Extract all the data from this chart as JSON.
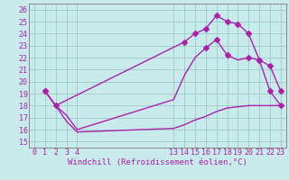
{
  "background_color": "#c8eaea",
  "grid_color": "#9ec8c8",
  "line_color": "#aa22aa",
  "xlim": [
    -0.5,
    23.5
  ],
  "ylim": [
    14.5,
    26.5
  ],
  "xticks": [
    0,
    1,
    2,
    3,
    4,
    13,
    14,
    15,
    16,
    17,
    18,
    19,
    20,
    21,
    22,
    23
  ],
  "yticks": [
    15,
    16,
    17,
    18,
    19,
    20,
    21,
    22,
    23,
    24,
    25,
    26
  ],
  "line1_x": [
    1,
    2,
    3,
    4,
    13,
    14,
    15,
    16,
    17,
    18,
    19,
    20,
    21,
    22,
    23
  ],
  "line1_y": [
    19.2,
    18.0,
    16.7,
    15.8,
    16.1,
    16.4,
    16.8,
    17.1,
    17.5,
    17.8,
    17.9,
    18.0,
    18.0,
    18.0,
    18.0
  ],
  "line2_x": [
    1,
    2,
    3,
    4,
    13,
    14,
    15,
    16,
    17,
    18,
    19,
    20,
    21,
    22,
    23
  ],
  "line2_y": [
    19.2,
    18.0,
    17.2,
    16.0,
    18.5,
    20.5,
    22.0,
    22.8,
    23.5,
    22.2,
    21.8,
    22.0,
    21.8,
    21.3,
    19.2
  ],
  "line3_x": [
    1,
    2,
    14,
    15,
    16,
    17,
    18,
    19,
    20,
    21,
    22,
    23
  ],
  "line3_y": [
    19.2,
    18.0,
    23.3,
    24.0,
    24.4,
    25.5,
    25.0,
    24.8,
    24.0,
    21.8,
    19.2,
    18.0
  ],
  "line2_markers_x": [
    1,
    16,
    17,
    18,
    20,
    21,
    22,
    23
  ],
  "line2_markers_y": [
    19.2,
    22.8,
    23.5,
    22.2,
    22.0,
    21.8,
    21.3,
    19.2
  ],
  "marker_size": 3,
  "linewidth": 1.0,
  "xlabel": "Windchill (Refroidissement éolien,°C)",
  "xlabel_fontsize": 6.5,
  "tick_fontsize": 6.0
}
